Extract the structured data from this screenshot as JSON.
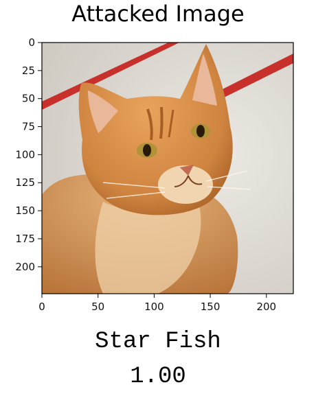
{
  "figure": {
    "title": "Attacked Image",
    "predicted_label": "Star Fish",
    "confidence": "1.00"
  },
  "image": {
    "subject_icon": "cat-photo",
    "colors": {
      "fur": "#d58a44",
      "fur_light": "#f0c48e",
      "fur_dark": "#a85d22",
      "background": "#dedad4",
      "stripe": "#c8302c",
      "eye": "#b09238"
    }
  },
  "chart_data": {
    "type": "image",
    "x_ticks": [
      "0",
      "50",
      "100",
      "150",
      "200"
    ],
    "y_ticks": [
      "0",
      "25",
      "50",
      "75",
      "100",
      "125",
      "150",
      "175",
      "200"
    ],
    "xlim": [
      0,
      224
    ],
    "ylim": [
      224,
      0
    ],
    "grid": false
  }
}
